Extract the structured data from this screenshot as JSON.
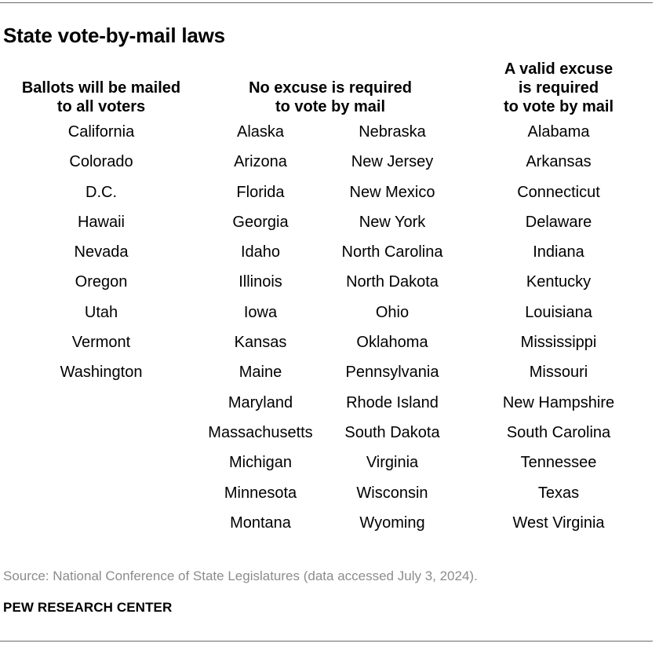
{
  "title": "State vote-by-mail laws",
  "columns": {
    "all_mail": {
      "header": [
        "Ballots will be mailed",
        "to all voters"
      ],
      "states": [
        "California",
        "Colorado",
        "D.C.",
        "Hawaii",
        "Nevada",
        "Oregon",
        "Utah",
        "Vermont",
        "Washington"
      ]
    },
    "no_excuse": {
      "header": [
        "No excuse is required",
        "to vote by mail"
      ],
      "states_left": [
        "Alaska",
        "Arizona",
        "Florida",
        "Georgia",
        "Idaho",
        "Illinois",
        "Iowa",
        "Kansas",
        "Maine",
        "Maryland",
        "Massachusetts",
        "Michigan",
        "Minnesota",
        "Montana"
      ],
      "states_right": [
        "Nebraska",
        "New Jersey",
        "New Mexico",
        "New York",
        "North Carolina",
        "North Dakota",
        "Ohio",
        "Oklahoma",
        "Pennsylvania",
        "Rhode Island",
        "South Dakota",
        "Virginia",
        "Wisconsin",
        "Wyoming"
      ]
    },
    "excuse_required": {
      "header": [
        "A valid excuse",
        "is required",
        "to vote by mail"
      ],
      "states": [
        "Alabama",
        "Arkansas",
        "Connecticut",
        "Delaware",
        "Indiana",
        "Kentucky",
        "Louisiana",
        "Mississippi",
        "Missouri",
        "New Hampshire",
        "South Carolina",
        "Tennessee",
        "Texas",
        "West Virginia"
      ]
    }
  },
  "source": "Source: National Conference of State Legislatures (data accessed July 3, 2024).",
  "organization": "PEW RESEARCH CENTER"
}
